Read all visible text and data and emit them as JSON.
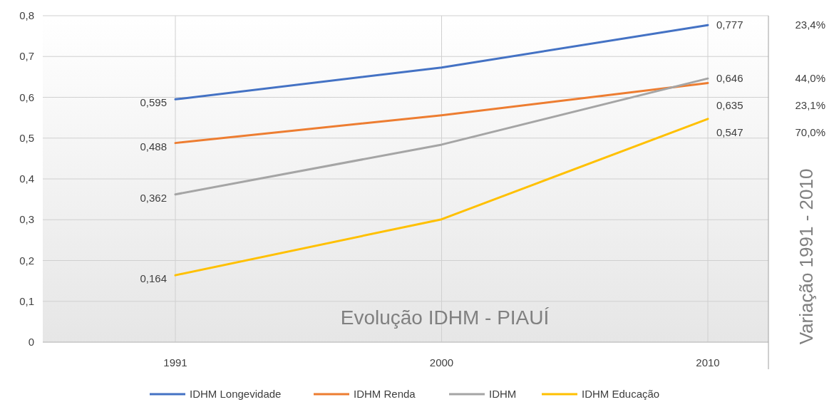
{
  "chart_data": {
    "type": "line",
    "title": "Evolução IDHM - PIAUÍ",
    "categories": [
      "1991",
      "2000",
      "2010"
    ],
    "series": [
      {
        "name": "IDHM Longevidade",
        "color": "#4472c4",
        "values": [
          0.595,
          0.673,
          0.777
        ],
        "value_labels": [
          "0,595",
          null,
          "0,777"
        ]
      },
      {
        "name": "IDHM Renda",
        "color": "#ed7d31",
        "values": [
          0.488,
          0.556,
          0.635
        ],
        "value_labels": [
          "0,488",
          null,
          "0,635"
        ]
      },
      {
        "name": "IDHM",
        "color": "#a5a5a5",
        "values": [
          0.362,
          0.484,
          0.646
        ],
        "value_labels": [
          "0,362",
          null,
          "0,646"
        ]
      },
      {
        "name": "IDHM Educação",
        "color": "#ffc000",
        "values": [
          0.164,
          0.301,
          0.547
        ],
        "value_labels": [
          "0,164",
          null,
          "0,547"
        ]
      }
    ],
    "ylim": [
      0,
      0.8
    ],
    "yticks": [
      {
        "value": 0,
        "label": "0"
      },
      {
        "value": 0.1,
        "label": "0,1"
      },
      {
        "value": 0.2,
        "label": "0,2"
      },
      {
        "value": 0.3,
        "label": "0,3"
      },
      {
        "value": 0.4,
        "label": "0,4"
      },
      {
        "value": 0.5,
        "label": "0,5"
      },
      {
        "value": 0.6,
        "label": "0,6"
      },
      {
        "value": 0.7,
        "label": "0,7"
      },
      {
        "value": 0.8,
        "label": "0,8"
      }
    ],
    "annotations": [
      "Variação 1991 - 2010",
      "23,4%",
      "44,0%",
      "23,1%",
      "70,0%"
    ],
    "grid": true,
    "legend": "bottom",
    "marker": "none",
    "line_style": "solid"
  }
}
